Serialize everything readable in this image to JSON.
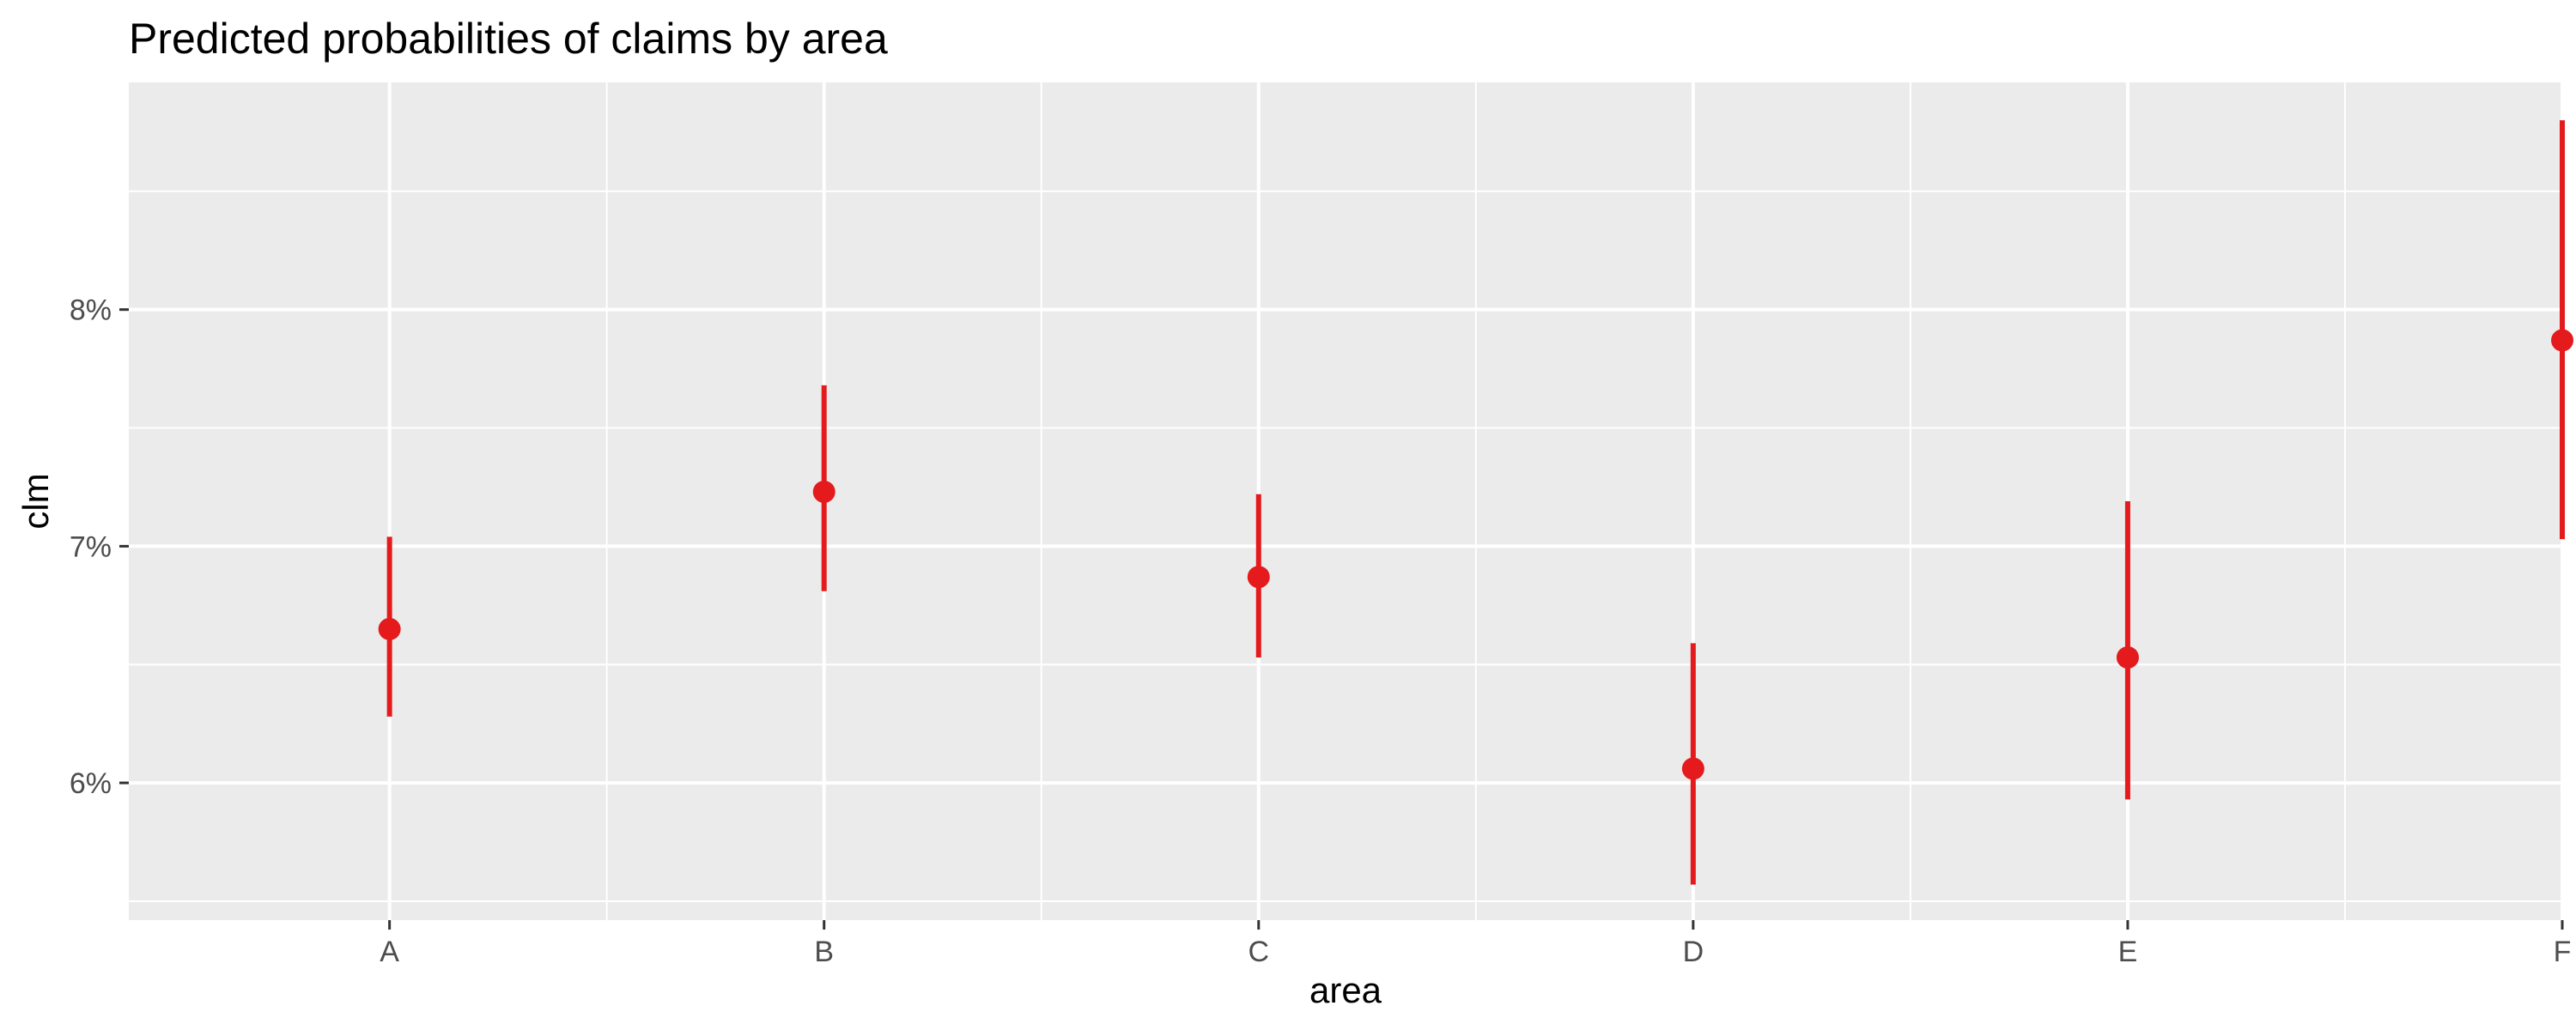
{
  "chart_data": {
    "type": "scatter",
    "title": "Predicted probabilities of claims by area",
    "xlabel": "area",
    "ylabel": "clm",
    "categories": [
      "A",
      "B",
      "C",
      "D",
      "E",
      "F"
    ],
    "series": [
      {
        "values": [
          6.65,
          7.23,
          6.87,
          6.06,
          6.53,
          7.87
        ],
        "lower": [
          6.28,
          6.81,
          6.53,
          5.57,
          5.93,
          7.03
        ],
        "upper": [
          7.04,
          7.68,
          7.22,
          6.59,
          7.19,
          8.8
        ]
      }
    ],
    "ylim": [
      5.42,
      8.96
    ],
    "yticks": [
      6,
      7,
      8
    ],
    "ytick_labels": [
      "6%",
      "7%",
      "8%"
    ],
    "grid": true,
    "colors": {
      "point": "#e41a1c",
      "panel": "#ebebeb",
      "grid": "#ffffff"
    }
  }
}
